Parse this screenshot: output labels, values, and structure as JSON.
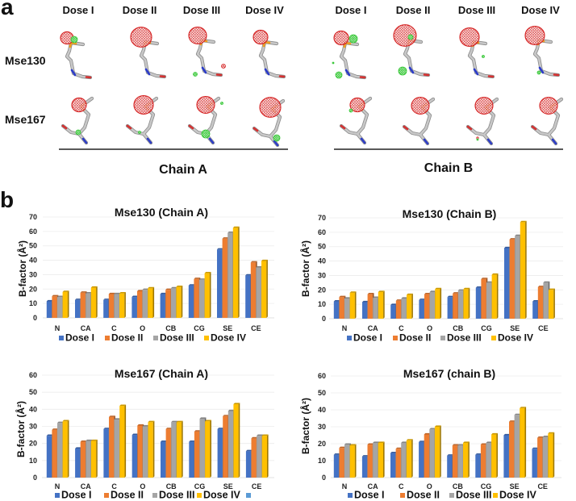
{
  "panel_a": {
    "label": "a",
    "dose_headers_chain_a": [
      "Dose I",
      "Dose II",
      "Dose III",
      "Dose IV"
    ],
    "dose_headers_chain_b": [
      "Dose I",
      "Dose II",
      "Dose III",
      "Dose IV"
    ],
    "row_labels": [
      "Mse130",
      "Mse167"
    ],
    "chain_labels": [
      "Chain A",
      "Chain B"
    ],
    "render_colors": {
      "density_mesh": "#d42020",
      "difference_density": "#33c633",
      "carbon": "#c8c8c8",
      "selenium": "#f0a020",
      "nitrogen": "#2c3cc8",
      "oxygen": "#d63030"
    }
  },
  "panel_b": {
    "label": "b"
  },
  "chart_data": [
    {
      "type": "bar",
      "title": "Mse130 (Chain A)",
      "xlabel": "",
      "ylabel": "B-factor (Å²)",
      "ylim": [
        0,
        70
      ],
      "yticks": [
        0,
        10,
        20,
        30,
        40,
        50,
        60,
        70
      ],
      "grid": true,
      "legend_position": "bottom",
      "categories": [
        "N",
        "CA",
        "C",
        "O",
        "CB",
        "CG",
        "SE",
        "CE"
      ],
      "series": [
        {
          "name": "Dose I",
          "color": "#4472C4",
          "values": [
            11.5,
            12.5,
            12.5,
            14.5,
            16.5,
            22.5,
            47.5,
            29.5
          ]
        },
        {
          "name": "Dose II",
          "color": "#ED7D31",
          "values": [
            15,
            17.5,
            16.5,
            18.5,
            19.5,
            27,
            55,
            38.5
          ]
        },
        {
          "name": "Dose III",
          "color": "#A5A5A5",
          "values": [
            14.5,
            17,
            16.5,
            19.5,
            20.5,
            26.5,
            59,
            35
          ]
        },
        {
          "name": "Dose IV",
          "color": "#FFC000",
          "values": [
            18,
            21,
            17,
            20.5,
            21.5,
            31,
            62.5,
            39.5
          ]
        }
      ],
      "legend_extra": []
    },
    {
      "type": "bar",
      "title": "Mse130 (Chain B)",
      "xlabel": "",
      "ylabel": "B-factor (Å²)",
      "ylim": [
        0,
        70
      ],
      "yticks": [
        0,
        10,
        20,
        30,
        40,
        50,
        60,
        70
      ],
      "grid": true,
      "legend_position": "bottom",
      "categories": [
        "N",
        "CA",
        "C",
        "O",
        "CB",
        "CG",
        "SE",
        "CE"
      ],
      "series": [
        {
          "name": "Dose I",
          "color": "#4472C4",
          "values": [
            12,
            11.5,
            9.5,
            13,
            15,
            21.5,
            49,
            12
          ]
        },
        {
          "name": "Dose II",
          "color": "#ED7D31",
          "values": [
            15,
            17,
            12.5,
            17,
            17.5,
            27.5,
            55,
            22
          ]
        },
        {
          "name": "Dose III",
          "color": "#A5A5A5",
          "values": [
            14,
            14.5,
            14,
            18.5,
            19.5,
            25,
            57.5,
            25
          ]
        },
        {
          "name": "Dose IV",
          "color": "#FFC000",
          "values": [
            18,
            18.5,
            16.5,
            20.5,
            20.5,
            30.5,
            67,
            20
          ]
        }
      ],
      "legend_extra": []
    },
    {
      "type": "bar",
      "title": "Mse167 (Chain A)",
      "xlabel": "",
      "ylabel": "B-factor (Å²)",
      "ylim": [
        0,
        60
      ],
      "yticks": [
        0,
        10,
        20,
        30,
        40,
        50,
        60
      ],
      "grid": true,
      "legend_position": "bottom",
      "categories": [
        "N",
        "CA",
        "C",
        "O",
        "CB",
        "CG",
        "SE",
        "CE"
      ],
      "series": [
        {
          "name": "Dose I",
          "color": "#4472C4",
          "values": [
            24.5,
            17,
            28.5,
            25,
            21,
            21,
            28.5,
            15.5
          ]
        },
        {
          "name": "Dose II",
          "color": "#ED7D31",
          "values": [
            28,
            21,
            35.5,
            30.5,
            28.5,
            27,
            36,
            23
          ]
        },
        {
          "name": "Dose III",
          "color": "#A5A5A5",
          "values": [
            32,
            21.5,
            34,
            30,
            32.5,
            34.5,
            39,
            24.5
          ]
        },
        {
          "name": "Dose IV",
          "color": "#FFC000",
          "values": [
            33,
            21.5,
            42,
            32.5,
            32.5,
            33,
            43,
            24.5
          ]
        }
      ],
      "legend_extra": [
        {
          "name": "",
          "color": "#5B9BD5"
        }
      ]
    },
    {
      "type": "bar",
      "title": "Mse167 (chain B)",
      "xlabel": "",
      "ylabel": "B-factor (Å²)",
      "ylim": [
        0,
        60
      ],
      "yticks": [
        0,
        10,
        20,
        30,
        40,
        50,
        60
      ],
      "grid": true,
      "legend_position": "bottom",
      "categories": [
        "N",
        "CA",
        "C",
        "O",
        "CB",
        "CG",
        "SE",
        "CE"
      ],
      "series": [
        {
          "name": "Dose I",
          "color": "#4472C4",
          "values": [
            13.5,
            12.5,
            14.5,
            21,
            13,
            13.5,
            25,
            17
          ]
        },
        {
          "name": "Dose II",
          "color": "#ED7D31",
          "values": [
            17.5,
            19.5,
            17,
            25.5,
            19,
            19.5,
            33,
            23.5
          ]
        },
        {
          "name": "Dose III",
          "color": "#A5A5A5",
          "values": [
            19.5,
            20.5,
            20.5,
            28.5,
            19,
            20.5,
            37,
            24
          ]
        },
        {
          "name": "Dose IV",
          "color": "#FFC000",
          "values": [
            19,
            20.5,
            22,
            30,
            20.5,
            25.5,
            41,
            26
          ]
        }
      ],
      "legend_extra": []
    }
  ]
}
